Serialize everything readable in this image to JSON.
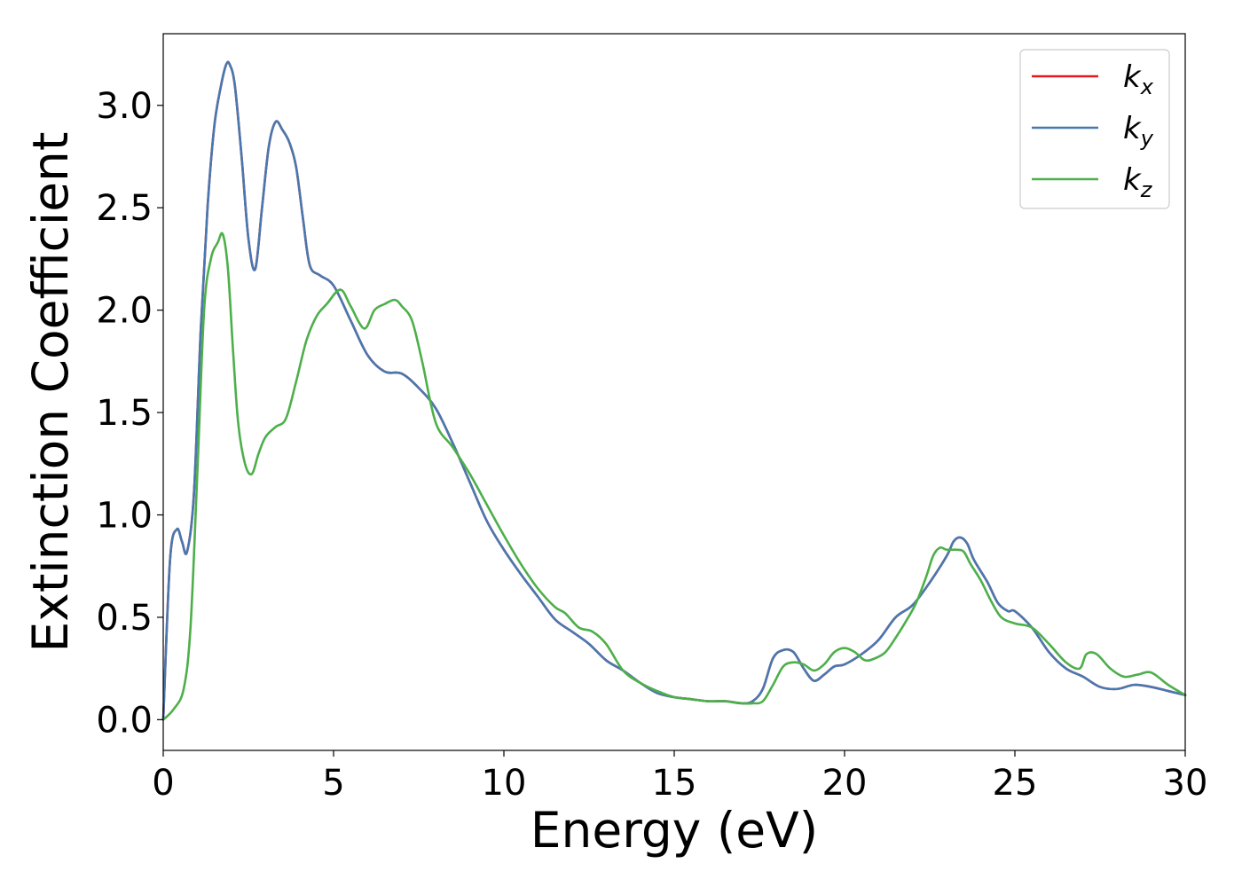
{
  "chart_data": {
    "type": "line",
    "title": "",
    "xlabel": "Energy (eV)",
    "ylabel": "Extinction Coefficient",
    "xlim": [
      0,
      30
    ],
    "ylim": [
      -0.15,
      3.35
    ],
    "xticks": [
      0,
      5,
      10,
      15,
      20,
      25,
      30
    ],
    "xtick_labels": [
      "0",
      "5",
      "10",
      "15",
      "20",
      "25",
      "30"
    ],
    "yticks": [
      0.0,
      0.5,
      1.0,
      1.5,
      2.0,
      2.5,
      3.0
    ],
    "ytick_labels": [
      "0.0",
      "0.5",
      "1.0",
      "1.5",
      "2.0",
      "2.5",
      "3.0"
    ],
    "grid": false,
    "legend_position": "top-right",
    "series": [
      {
        "name": "k_x",
        "legend_base": "k",
        "legend_sub": "x",
        "color": "#e41a1c",
        "x": [
          0,
          0.2,
          0.4,
          0.55,
          0.7,
          0.9,
          1.1,
          1.3,
          1.5,
          1.7,
          1.85,
          1.95,
          2.1,
          2.3,
          2.5,
          2.7,
          2.9,
          3.1,
          3.3,
          3.5,
          3.7,
          3.9,
          4.1,
          4.3,
          4.6,
          5.0,
          5.5,
          6.0,
          6.5,
          7.0,
          7.5,
          8.0,
          8.5,
          9.0,
          9.5,
          10.0,
          10.5,
          11.0,
          11.5,
          12.0,
          12.5,
          13.0,
          13.5,
          14.0,
          14.5,
          15.0,
          15.5,
          16.0,
          16.5,
          17.0,
          17.3,
          17.6,
          17.9,
          18.2,
          18.5,
          18.8,
          19.1,
          19.4,
          19.7,
          20.0,
          20.5,
          21.0,
          21.5,
          22.0,
          22.5,
          23.0,
          23.2,
          23.4,
          23.6,
          23.8,
          24.2,
          24.5,
          24.8,
          25.0,
          25.5,
          26.0,
          26.5,
          27.0,
          27.5,
          28.0,
          28.5,
          29.0,
          29.5,
          30.0
        ],
        "values": [
          0.0,
          0.78,
          0.93,
          0.87,
          0.82,
          1.1,
          1.9,
          2.5,
          2.9,
          3.1,
          3.2,
          3.2,
          3.1,
          2.75,
          2.35,
          2.2,
          2.5,
          2.8,
          2.92,
          2.88,
          2.82,
          2.7,
          2.45,
          2.22,
          2.17,
          2.12,
          1.95,
          1.78,
          1.7,
          1.69,
          1.62,
          1.52,
          1.35,
          1.16,
          0.97,
          0.83,
          0.71,
          0.6,
          0.49,
          0.43,
          0.37,
          0.29,
          0.24,
          0.18,
          0.13,
          0.11,
          0.1,
          0.09,
          0.09,
          0.08,
          0.09,
          0.15,
          0.3,
          0.34,
          0.33,
          0.25,
          0.19,
          0.22,
          0.26,
          0.27,
          0.32,
          0.39,
          0.5,
          0.56,
          0.67,
          0.8,
          0.87,
          0.89,
          0.86,
          0.78,
          0.67,
          0.57,
          0.53,
          0.53,
          0.45,
          0.33,
          0.25,
          0.21,
          0.16,
          0.15,
          0.17,
          0.16,
          0.14,
          0.12
        ]
      },
      {
        "name": "k_y",
        "legend_base": "k",
        "legend_sub": "y",
        "color": "#4878b0",
        "x": [
          0,
          0.2,
          0.4,
          0.55,
          0.7,
          0.9,
          1.1,
          1.3,
          1.5,
          1.7,
          1.85,
          1.95,
          2.1,
          2.3,
          2.5,
          2.7,
          2.9,
          3.1,
          3.3,
          3.5,
          3.7,
          3.9,
          4.1,
          4.3,
          4.6,
          5.0,
          5.5,
          6.0,
          6.5,
          7.0,
          7.5,
          8.0,
          8.5,
          9.0,
          9.5,
          10.0,
          10.5,
          11.0,
          11.5,
          12.0,
          12.5,
          13.0,
          13.5,
          14.0,
          14.5,
          15.0,
          15.5,
          16.0,
          16.5,
          17.0,
          17.3,
          17.6,
          17.9,
          18.2,
          18.5,
          18.8,
          19.1,
          19.4,
          19.7,
          20.0,
          20.5,
          21.0,
          21.5,
          22.0,
          22.5,
          23.0,
          23.2,
          23.4,
          23.6,
          23.8,
          24.2,
          24.5,
          24.8,
          25.0,
          25.5,
          26.0,
          26.5,
          27.0,
          27.5,
          28.0,
          28.5,
          29.0,
          29.5,
          30.0
        ],
        "values": [
          0.0,
          0.78,
          0.93,
          0.87,
          0.82,
          1.1,
          1.9,
          2.5,
          2.9,
          3.1,
          3.2,
          3.2,
          3.1,
          2.75,
          2.35,
          2.2,
          2.5,
          2.8,
          2.92,
          2.88,
          2.82,
          2.7,
          2.45,
          2.22,
          2.17,
          2.12,
          1.95,
          1.78,
          1.7,
          1.69,
          1.62,
          1.52,
          1.35,
          1.16,
          0.97,
          0.83,
          0.71,
          0.6,
          0.49,
          0.43,
          0.37,
          0.29,
          0.24,
          0.18,
          0.13,
          0.11,
          0.1,
          0.09,
          0.09,
          0.08,
          0.09,
          0.15,
          0.3,
          0.34,
          0.33,
          0.25,
          0.19,
          0.22,
          0.26,
          0.27,
          0.32,
          0.39,
          0.5,
          0.56,
          0.67,
          0.8,
          0.87,
          0.89,
          0.86,
          0.78,
          0.67,
          0.57,
          0.53,
          0.53,
          0.45,
          0.33,
          0.25,
          0.21,
          0.16,
          0.15,
          0.17,
          0.16,
          0.14,
          0.12
        ]
      },
      {
        "name": "k_z",
        "legend_base": "k",
        "legend_sub": "z",
        "color": "#4daf4a",
        "x": [
          0,
          0.3,
          0.6,
          0.8,
          1.0,
          1.2,
          1.4,
          1.6,
          1.75,
          1.9,
          2.05,
          2.2,
          2.4,
          2.6,
          2.8,
          3.0,
          3.3,
          3.6,
          3.9,
          4.2,
          4.5,
          4.8,
          5.2,
          5.5,
          5.9,
          6.2,
          6.5,
          6.8,
          7.0,
          7.3,
          7.6,
          8.0,
          8.5,
          9.0,
          9.5,
          10.0,
          10.5,
          11.0,
          11.5,
          11.8,
          12.2,
          12.6,
          13.0,
          13.5,
          14.0,
          14.5,
          15.0,
          15.5,
          16.0,
          16.5,
          17.0,
          17.3,
          17.6,
          17.9,
          18.2,
          18.5,
          18.8,
          19.1,
          19.4,
          19.7,
          20.0,
          20.3,
          20.6,
          20.9,
          21.2,
          21.5,
          21.8,
          22.1,
          22.4,
          22.6,
          22.8,
          23.0,
          23.3,
          23.5,
          23.7,
          24.0,
          24.3,
          24.6,
          25.0,
          25.5,
          26.0,
          26.5,
          26.9,
          27.1,
          27.4,
          27.8,
          28.2,
          28.6,
          29.0,
          29.5,
          30.0
        ],
        "values": [
          0.0,
          0.05,
          0.15,
          0.45,
          1.2,
          2.0,
          2.25,
          2.33,
          2.37,
          2.2,
          1.8,
          1.45,
          1.25,
          1.2,
          1.3,
          1.38,
          1.43,
          1.47,
          1.65,
          1.85,
          1.97,
          2.03,
          2.1,
          2.02,
          1.91,
          2.0,
          2.03,
          2.05,
          2.02,
          1.95,
          1.75,
          1.45,
          1.33,
          1.2,
          1.05,
          0.9,
          0.76,
          0.64,
          0.55,
          0.52,
          0.45,
          0.43,
          0.37,
          0.24,
          0.18,
          0.14,
          0.11,
          0.1,
          0.09,
          0.09,
          0.08,
          0.08,
          0.09,
          0.17,
          0.26,
          0.28,
          0.27,
          0.24,
          0.27,
          0.33,
          0.35,
          0.33,
          0.29,
          0.3,
          0.33,
          0.4,
          0.48,
          0.57,
          0.7,
          0.8,
          0.84,
          0.83,
          0.83,
          0.82,
          0.76,
          0.68,
          0.58,
          0.5,
          0.47,
          0.45,
          0.37,
          0.28,
          0.25,
          0.32,
          0.32,
          0.25,
          0.21,
          0.22,
          0.23,
          0.17,
          0.12
        ]
      }
    ]
  }
}
